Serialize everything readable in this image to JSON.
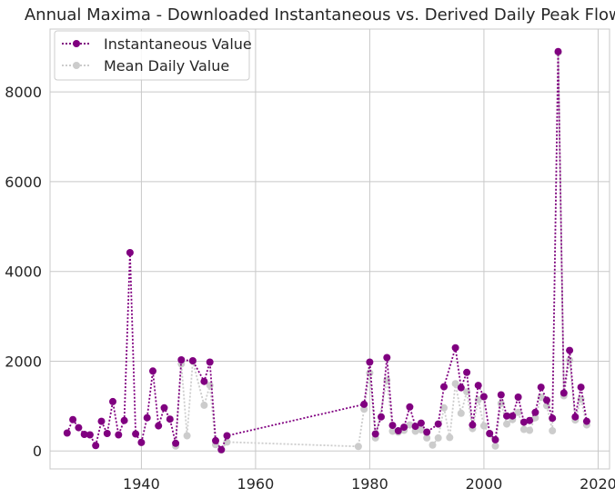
{
  "chart_data": {
    "type": "line",
    "title": "Annual Maxima - Downloaded Instantaneous vs. Derived Daily Peak Flows",
    "xlabel": "",
    "ylabel": "",
    "xlim": [
      1924,
      2022
    ],
    "ylim": [
      -400,
      9400
    ],
    "xticks": [
      1940,
      1960,
      1980,
      2000,
      2020
    ],
    "yticks": [
      0,
      2000,
      4000,
      6000,
      8000
    ],
    "grid": true,
    "legend": "top-left",
    "colors": {
      "instantaneous": "#800080",
      "mean_daily": "#cccccc",
      "grid": "#c8c8c8",
      "text": "#262626"
    },
    "series": [
      {
        "name": "Instantaneous Value",
        "style": "dotted-line-with-markers",
        "points": [
          [
            1927,
            400
          ],
          [
            1928,
            700
          ],
          [
            1929,
            520
          ],
          [
            1930,
            370
          ],
          [
            1931,
            360
          ],
          [
            1932,
            120
          ],
          [
            1933,
            660
          ],
          [
            1934,
            390
          ],
          [
            1935,
            1100
          ],
          [
            1936,
            360
          ],
          [
            1937,
            680
          ],
          [
            1938,
            4420
          ],
          [
            1939,
            380
          ],
          [
            1940,
            190
          ],
          [
            1941,
            740
          ],
          [
            1942,
            1780
          ],
          [
            1943,
            560
          ],
          [
            1944,
            960
          ],
          [
            1945,
            710
          ],
          [
            1946,
            170
          ],
          [
            1947,
            2030
          ],
          [
            1949,
            2010
          ],
          [
            1951,
            1550
          ],
          [
            1952,
            1980
          ],
          [
            1953,
            230
          ],
          [
            1954,
            30
          ],
          [
            1955,
            340
          ],
          [
            1979,
            1040
          ],
          [
            1980,
            1980
          ],
          [
            1981,
            380
          ],
          [
            1982,
            760
          ],
          [
            1983,
            2080
          ],
          [
            1984,
            570
          ],
          [
            1985,
            450
          ],
          [
            1986,
            530
          ],
          [
            1987,
            980
          ],
          [
            1988,
            550
          ],
          [
            1989,
            620
          ],
          [
            1990,
            420
          ],
          [
            1992,
            600
          ],
          [
            1993,
            1430
          ],
          [
            1995,
            2300
          ],
          [
            1996,
            1410
          ],
          [
            1997,
            1750
          ],
          [
            1998,
            580
          ],
          [
            1999,
            1460
          ],
          [
            2000,
            1210
          ],
          [
            2001,
            390
          ],
          [
            2002,
            250
          ],
          [
            2003,
            1250
          ],
          [
            2004,
            780
          ],
          [
            2005,
            780
          ],
          [
            2006,
            1200
          ],
          [
            2007,
            640
          ],
          [
            2008,
            680
          ],
          [
            2009,
            860
          ],
          [
            2010,
            1420
          ],
          [
            2011,
            1130
          ],
          [
            2012,
            730
          ],
          [
            2013,
            8900
          ],
          [
            2014,
            1290
          ],
          [
            2015,
            2240
          ],
          [
            2016,
            760
          ],
          [
            2017,
            1420
          ],
          [
            2018,
            660
          ]
        ]
      },
      {
        "name": "Mean Daily Value",
        "style": "dotted-line-with-markers",
        "points": [
          [
            1946,
            110
          ],
          [
            1947,
            1940
          ],
          [
            1948,
            340
          ],
          [
            1949,
            2000
          ],
          [
            1951,
            1020
          ],
          [
            1952,
            1460
          ],
          [
            1953,
            140
          ],
          [
            1954,
            20
          ],
          [
            1955,
            200
          ],
          [
            1978,
            100
          ],
          [
            1979,
            930
          ],
          [
            1980,
            1740
          ],
          [
            1981,
            290
          ],
          [
            1983,
            1580
          ],
          [
            1984,
            440
          ],
          [
            1985,
            420
          ],
          [
            1986,
            460
          ],
          [
            1987,
            580
          ],
          [
            1988,
            440
          ],
          [
            1989,
            470
          ],
          [
            1990,
            290
          ],
          [
            1991,
            130
          ],
          [
            1992,
            290
          ],
          [
            1993,
            960
          ],
          [
            1994,
            300
          ],
          [
            1995,
            1500
          ],
          [
            1996,
            840
          ],
          [
            1997,
            1320
          ],
          [
            1998,
            500
          ],
          [
            1999,
            1140
          ],
          [
            2000,
            560
          ],
          [
            2001,
            380
          ],
          [
            2002,
            110
          ],
          [
            2003,
            1060
          ],
          [
            2004,
            600
          ],
          [
            2005,
            700
          ],
          [
            2006,
            860
          ],
          [
            2007,
            480
          ],
          [
            2008,
            460
          ],
          [
            2009,
            740
          ],
          [
            2010,
            1200
          ],
          [
            2011,
            1010
          ],
          [
            2012,
            450
          ],
          [
            2013,
            8880
          ],
          [
            2014,
            1230
          ],
          [
            2015,
            2020
          ],
          [
            2016,
            690
          ],
          [
            2017,
            1150
          ],
          [
            2018,
            580
          ]
        ]
      }
    ]
  }
}
